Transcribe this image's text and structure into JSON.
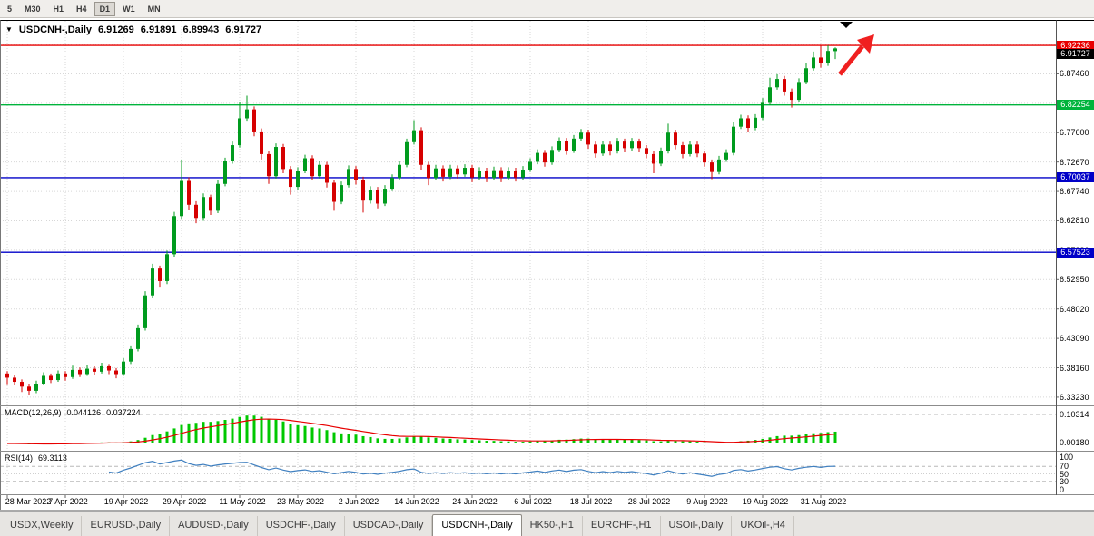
{
  "toolbar": {
    "timeframes": [
      {
        "label": "5",
        "selected": false
      },
      {
        "label": "M30",
        "selected": false
      },
      {
        "label": "H1",
        "selected": false
      },
      {
        "label": "H4",
        "selected": false
      },
      {
        "label": "D1",
        "selected": true
      },
      {
        "label": "W1",
        "selected": false
      },
      {
        "label": "MN",
        "selected": false
      }
    ]
  },
  "header": {
    "marker": "▼",
    "symbol": "USDCNH-,Daily",
    "open": "6.91269",
    "high": "6.91891",
    "low": "6.89943",
    "close": "6.91727"
  },
  "macd_panel": {
    "title": "MACD(12,26,9)",
    "value1": "0.044126",
    "value2": "0.037224",
    "axis_labels": [
      {
        "text": "0.10314",
        "value": 0.10314
      },
      {
        "text": "0.00180",
        "value": 0.0018
      }
    ]
  },
  "rsi_panel": {
    "title": "RSI(14)",
    "value": "69.3113",
    "axis_labels": [
      {
        "text": "100",
        "value": 100
      },
      {
        "text": "70",
        "value": 70
      },
      {
        "text": "50",
        "value": 50
      },
      {
        "text": "30",
        "value": 30
      },
      {
        "text": "0",
        "value": 0
      }
    ]
  },
  "price_axis": {
    "labels": [
      "6.92390",
      "6.87460",
      "6.82530",
      "6.77600",
      "6.72670",
      "6.67740",
      "6.62810",
      "6.57880",
      "6.52950",
      "6.48020",
      "6.43090",
      "6.38160",
      "6.33230"
    ],
    "tags": [
      {
        "text": "6.92236",
        "bg": "#e80000",
        "price": 6.92236,
        "kind": "hline"
      },
      {
        "text": "6.91727",
        "bg": "#000000",
        "price": 6.91727,
        "kind": "current"
      },
      {
        "text": "6.82254",
        "bg": "#00b43c",
        "price": 6.82254,
        "kind": "hline"
      },
      {
        "text": "6.70037",
        "bg": "#0000c8",
        "price": 6.70037,
        "kind": "hline"
      },
      {
        "text": "6.57523",
        "bg": "#0000c8",
        "price": 6.57523,
        "kind": "hline"
      }
    ]
  },
  "date_axis": [
    {
      "i": 0,
      "label": "28 Mar 2022"
    },
    {
      "i": 8,
      "label": "7 Apr 2022"
    },
    {
      "i": 16,
      "label": "19 Apr 2022"
    },
    {
      "i": 24,
      "label": "29 Apr 2022"
    },
    {
      "i": 32,
      "label": "11 May 2022"
    },
    {
      "i": 40,
      "label": "23 May 2022"
    },
    {
      "i": 48,
      "label": "2 Jun 2022"
    },
    {
      "i": 56,
      "label": "14 Jun 2022"
    },
    {
      "i": 64,
      "label": "24 Jun 2022"
    },
    {
      "i": 72,
      "label": "6 Jul 2022"
    },
    {
      "i": 80,
      "label": "18 Jul 2022"
    },
    {
      "i": 88,
      "label": "28 Jul 2022"
    },
    {
      "i": 96,
      "label": "9 Aug 2022"
    },
    {
      "i": 104,
      "label": "19 Aug 2022"
    },
    {
      "i": 112,
      "label": "31 Aug 2022"
    }
  ],
  "tabs": [
    {
      "label": "USDX,Weekly",
      "active": false
    },
    {
      "label": "EURUSD-,Daily",
      "active": false
    },
    {
      "label": "AUDUSD-,Daily",
      "active": false
    },
    {
      "label": "USDCHF-,Daily",
      "active": false
    },
    {
      "label": "USDCAD-,Daily",
      "active": false
    },
    {
      "label": "USDCNH-,Daily",
      "active": true
    },
    {
      "label": "HK50-,H1",
      "active": false
    },
    {
      "label": "EURCHF-,H1",
      "active": false
    },
    {
      "label": "USOil-,Daily",
      "active": false
    },
    {
      "label": "UKOil-,H4",
      "active": false
    }
  ],
  "colors": {
    "bull": "#009b1e",
    "bear": "#d60000",
    "grid": "#d7d7d7",
    "macd_hist": "#00c800",
    "macd_signal": "#e80000",
    "rsi_line": "#4080c0",
    "red_line": "#e80000",
    "green_line": "#00b43c",
    "blue_line": "#0000c8"
  },
  "chart_data": {
    "type": "candlestick",
    "symbol": "USDCNH-",
    "timeframe": "Daily",
    "last_ohlc": {
      "open": 6.91269,
      "high": 6.91891,
      "low": 6.89943,
      "close": 6.91727
    },
    "y_axis_range": [
      6.3185,
      6.9635
    ],
    "hlines": [
      {
        "price": 6.92236,
        "color": "#e80000"
      },
      {
        "price": 6.82254,
        "color": "#00b43c"
      },
      {
        "price": 6.70037,
        "color": "#0000c8"
      },
      {
        "price": 6.57523,
        "color": "#0000c8"
      }
    ],
    "indicators": [
      {
        "type": "MACD",
        "fast": 12,
        "slow": 26,
        "signal": 9,
        "current_values": [
          0.044126,
          0.037224
        ]
      },
      {
        "type": "RSI",
        "period": 14,
        "current_value": 69.3113
      }
    ],
    "annotations": [
      {
        "type": "arrow",
        "direction": "up-right",
        "color": "#f02020"
      },
      {
        "type": "triangle-marker",
        "direction": "down",
        "color": "#000000"
      }
    ],
    "ohlc": [
      [
        6.372,
        6.376,
        6.354,
        6.365
      ],
      [
        6.365,
        6.369,
        6.352,
        6.358
      ],
      [
        6.358,
        6.362,
        6.341,
        6.35
      ],
      [
        6.35,
        6.355,
        6.336,
        6.343
      ],
      [
        6.343,
        6.36,
        6.339,
        6.355
      ],
      [
        6.355,
        6.374,
        6.352,
        6.368
      ],
      [
        6.368,
        6.372,
        6.356,
        6.361
      ],
      [
        6.361,
        6.377,
        6.358,
        6.372
      ],
      [
        6.372,
        6.376,
        6.36,
        6.366
      ],
      [
        6.366,
        6.385,
        6.363,
        6.378
      ],
      [
        6.378,
        6.382,
        6.366,
        6.371
      ],
      [
        6.371,
        6.386,
        6.368,
        6.38
      ],
      [
        6.38,
        6.384,
        6.369,
        6.375
      ],
      [
        6.375,
        6.39,
        6.372,
        6.384
      ],
      [
        6.384,
        6.388,
        6.371,
        6.377
      ],
      [
        6.377,
        6.381,
        6.364,
        6.371
      ],
      [
        6.371,
        6.398,
        6.368,
        6.392
      ],
      [
        6.392,
        6.419,
        6.388,
        6.413
      ],
      [
        6.413,
        6.454,
        6.409,
        6.448
      ],
      [
        6.448,
        6.51,
        6.444,
        6.503
      ],
      [
        6.503,
        6.556,
        6.498,
        6.548
      ],
      [
        6.548,
        6.553,
        6.516,
        6.527
      ],
      [
        6.527,
        6.578,
        6.522,
        6.572
      ],
      [
        6.572,
        6.643,
        6.568,
        6.636
      ],
      [
        6.636,
        6.731,
        6.63,
        6.695
      ],
      [
        6.695,
        6.701,
        6.647,
        6.655
      ],
      [
        6.655,
        6.661,
        6.624,
        6.633
      ],
      [
        6.633,
        6.674,
        6.628,
        6.668
      ],
      [
        6.668,
        6.672,
        6.638,
        6.645
      ],
      [
        6.645,
        6.696,
        6.641,
        6.69
      ],
      [
        6.69,
        6.734,
        6.686,
        6.728
      ],
      [
        6.728,
        6.761,
        6.724,
        6.755
      ],
      [
        6.755,
        6.828,
        6.751,
        6.8
      ],
      [
        6.8,
        6.838,
        6.796,
        6.815
      ],
      [
        6.815,
        6.82,
        6.77,
        6.778
      ],
      [
        6.778,
        6.783,
        6.731,
        6.74
      ],
      [
        6.74,
        6.745,
        6.69,
        6.703
      ],
      [
        6.703,
        6.758,
        6.699,
        6.752
      ],
      [
        6.752,
        6.757,
        6.708,
        6.715
      ],
      [
        6.715,
        6.72,
        6.672,
        6.685
      ],
      [
        6.685,
        6.718,
        6.68,
        6.712
      ],
      [
        6.712,
        6.739,
        6.708,
        6.733
      ],
      [
        6.733,
        6.738,
        6.696,
        6.703
      ],
      [
        6.703,
        6.728,
        6.699,
        6.722
      ],
      [
        6.722,
        6.727,
        6.684,
        6.692
      ],
      [
        6.692,
        6.697,
        6.645,
        6.66
      ],
      [
        6.66,
        6.694,
        6.656,
        6.688
      ],
      [
        6.688,
        6.721,
        6.684,
        6.715
      ],
      [
        6.715,
        6.72,
        6.689,
        6.697
      ],
      [
        6.697,
        6.702,
        6.642,
        6.662
      ],
      [
        6.662,
        6.686,
        6.657,
        6.68
      ],
      [
        6.68,
        6.685,
        6.649,
        6.657
      ],
      [
        6.657,
        6.688,
        6.653,
        6.682
      ],
      [
        6.682,
        6.706,
        6.678,
        6.7
      ],
      [
        6.7,
        6.728,
        6.696,
        6.722
      ],
      [
        6.722,
        6.766,
        6.718,
        6.76
      ],
      [
        6.76,
        6.797,
        6.756,
        6.78
      ],
      [
        6.78,
        6.785,
        6.714,
        6.722
      ],
      [
        6.722,
        6.727,
        6.688,
        6.7
      ],
      [
        6.7,
        6.722,
        6.696,
        6.716
      ],
      [
        6.716,
        6.721,
        6.694,
        6.702
      ],
      [
        6.702,
        6.722,
        6.698,
        6.716
      ],
      [
        6.716,
        6.721,
        6.699,
        6.706
      ],
      [
        6.706,
        6.723,
        6.702,
        6.717
      ],
      [
        6.717,
        6.722,
        6.693,
        6.701
      ],
      [
        6.701,
        6.718,
        6.697,
        6.712
      ],
      [
        6.712,
        6.717,
        6.693,
        6.7
      ],
      [
        6.7,
        6.719,
        6.696,
        6.713
      ],
      [
        6.713,
        6.718,
        6.693,
        6.7
      ],
      [
        6.7,
        6.718,
        6.696,
        6.712
      ],
      [
        6.712,
        6.717,
        6.694,
        6.701
      ],
      [
        6.701,
        6.72,
        6.697,
        6.714
      ],
      [
        6.714,
        6.733,
        6.71,
        6.727
      ],
      [
        6.727,
        6.748,
        6.723,
        6.742
      ],
      [
        6.742,
        6.747,
        6.719,
        6.726
      ],
      [
        6.726,
        6.753,
        6.722,
        6.747
      ],
      [
        6.747,
        6.768,
        6.743,
        6.762
      ],
      [
        6.762,
        6.767,
        6.739,
        6.746
      ],
      [
        6.746,
        6.772,
        6.742,
        6.766
      ],
      [
        6.766,
        6.782,
        6.762,
        6.776
      ],
      [
        6.776,
        6.781,
        6.749,
        6.756
      ],
      [
        6.756,
        6.761,
        6.734,
        6.741
      ],
      [
        6.741,
        6.762,
        6.737,
        6.756
      ],
      [
        6.756,
        6.761,
        6.738,
        6.745
      ],
      [
        6.745,
        6.767,
        6.741,
        6.761
      ],
      [
        6.761,
        6.766,
        6.743,
        6.75
      ],
      [
        6.75,
        6.767,
        6.746,
        6.761
      ],
      [
        6.761,
        6.766,
        6.743,
        6.75
      ],
      [
        6.75,
        6.755,
        6.733,
        6.74
      ],
      [
        6.74,
        6.745,
        6.708,
        6.724
      ],
      [
        6.724,
        6.751,
        6.72,
        6.745
      ],
      [
        6.745,
        6.791,
        6.741,
        6.776
      ],
      [
        6.776,
        6.781,
        6.748,
        6.755
      ],
      [
        6.755,
        6.76,
        6.733,
        6.74
      ],
      [
        6.74,
        6.762,
        6.736,
        6.756
      ],
      [
        6.756,
        6.761,
        6.735,
        6.741
      ],
      [
        6.741,
        6.746,
        6.719,
        6.726
      ],
      [
        6.726,
        6.731,
        6.698,
        6.71
      ],
      [
        6.71,
        6.737,
        6.706,
        6.731
      ],
      [
        6.731,
        6.748,
        6.727,
        6.742
      ],
      [
        6.742,
        6.794,
        6.738,
        6.786
      ],
      [
        6.786,
        6.806,
        6.782,
        6.8
      ],
      [
        6.8,
        6.805,
        6.777,
        6.784
      ],
      [
        6.784,
        6.807,
        6.78,
        6.801
      ],
      [
        6.801,
        6.834,
        6.797,
        6.826
      ],
      [
        6.826,
        6.868,
        6.822,
        6.852
      ],
      [
        6.852,
        6.874,
        6.848,
        6.866
      ],
      [
        6.866,
        6.871,
        6.838,
        6.845
      ],
      [
        6.845,
        6.85,
        6.818,
        6.831
      ],
      [
        6.831,
        6.867,
        6.827,
        6.861
      ],
      [
        6.861,
        6.892,
        6.857,
        6.884
      ],
      [
        6.884,
        6.912,
        6.88,
        6.902
      ],
      [
        6.902,
        6.922,
        6.885,
        6.892
      ],
      [
        6.892,
        6.9224,
        6.888,
        6.913
      ],
      [
        6.91269,
        6.91891,
        6.89943,
        6.91727
      ]
    ]
  }
}
